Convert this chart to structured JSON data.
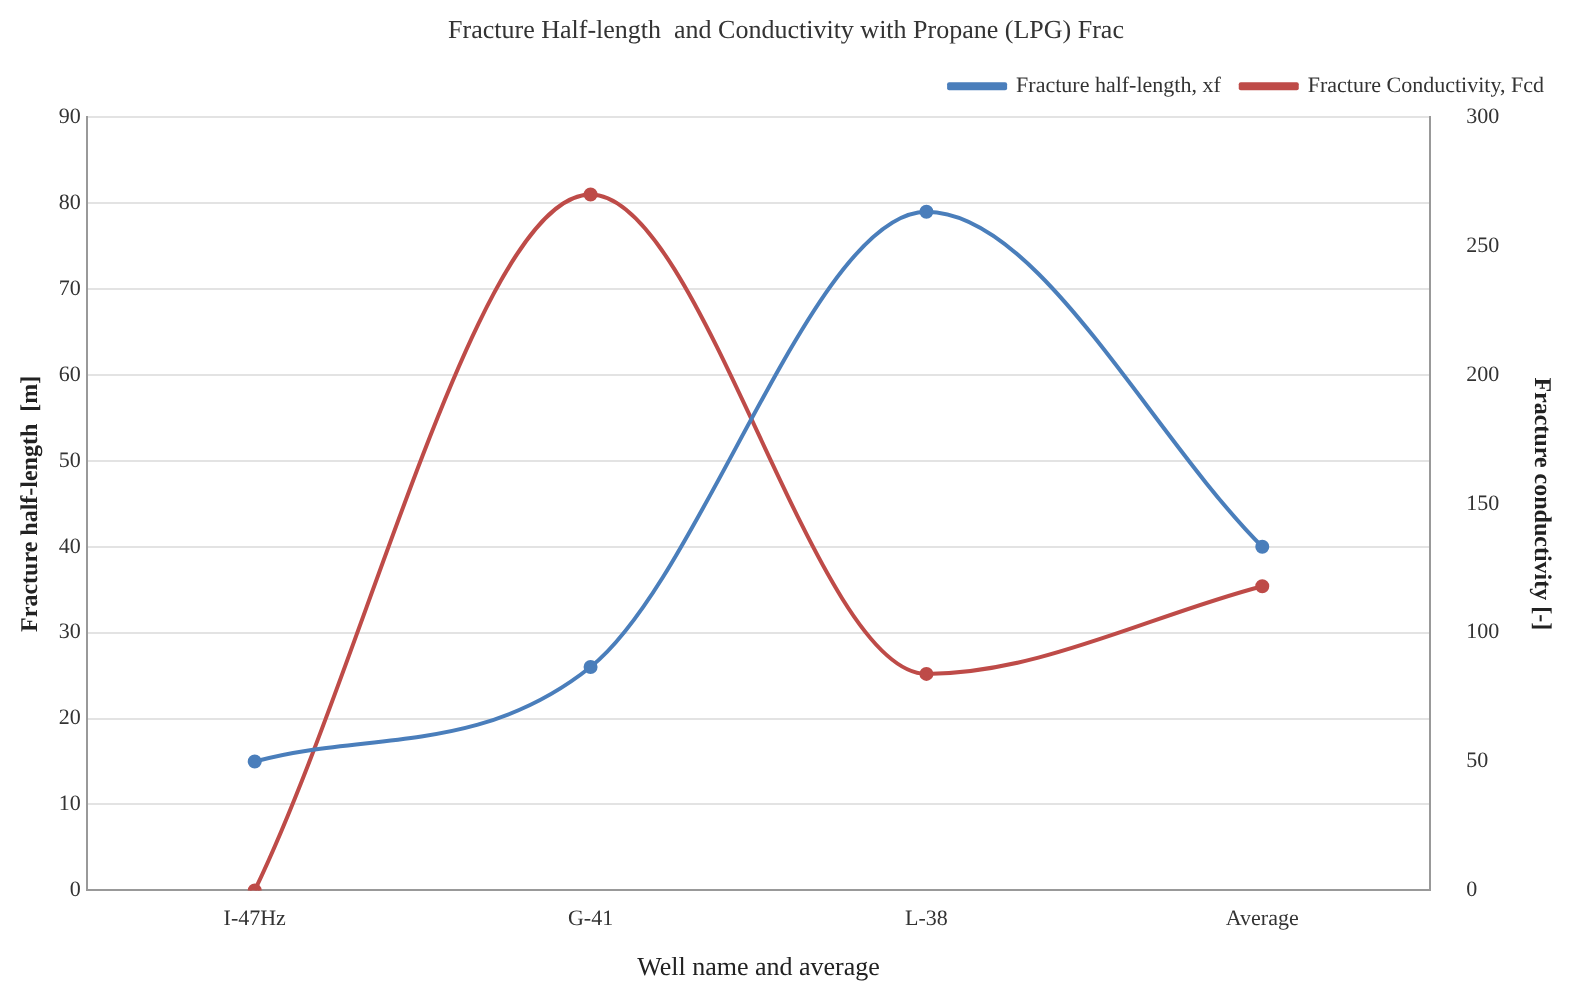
{
  "chart_data": {
    "type": "line",
    "title": "Fracture Half-length  and Conductivity with Propane (LPG) Frac",
    "xlabel": "Well name and average",
    "ylabel": "Fracture half-length  [m]",
    "y2label": "Fracture conductivity [-]",
    "categories": [
      "I-47Hz",
      "G-41",
      "L-38",
      "Average"
    ],
    "series": [
      {
        "name": "Fracture half-length, xf",
        "color": "#4a7ebb",
        "values": [
          15,
          26,
          79,
          40
        ]
      },
      {
        "name": "Fracture Conductivity, Fcd",
        "color": "#be4b48",
        "values": [
          0,
          270,
          84,
          118
        ],
        "axis": "y2"
      }
    ],
    "ylim": [
      0,
      90
    ],
    "yticks": [
      0,
      10,
      20,
      30,
      40,
      50,
      60,
      70,
      80,
      90
    ],
    "y2lim": [
      0,
      300
    ],
    "y2ticks": [
      0,
      50,
      100,
      150,
      200,
      250,
      300
    ],
    "grid": "y",
    "legend": "top right",
    "marker": "circle",
    "line_style": "solid"
  }
}
